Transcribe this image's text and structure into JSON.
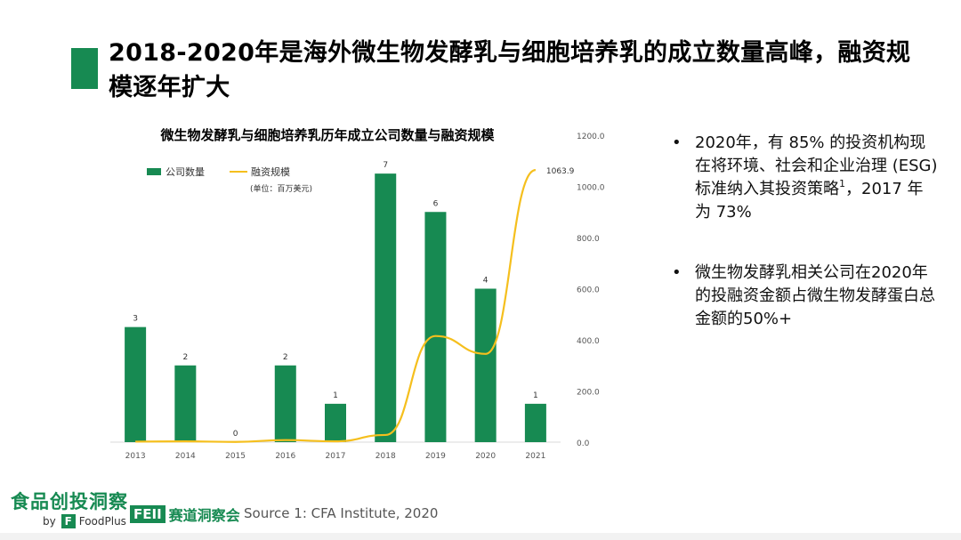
{
  "title": "2018-2020年是海外微生物发酵乳与细胞培养乳的成立数量高峰，融资规模逐年扩大",
  "chart_data": {
    "type": "bar+line",
    "title": "微生物发酵乳与细胞培养乳历年成立公司数量与融资规模",
    "categories": [
      "2013",
      "2014",
      "2015",
      "2016",
      "2017",
      "2018",
      "2019",
      "2020",
      "2021"
    ],
    "series": [
      {
        "name": "公司数量",
        "type": "bar",
        "color": "#178a52",
        "axis": "left",
        "values": [
          3,
          2,
          0,
          2,
          1,
          7,
          6,
          4,
          1
        ]
      },
      {
        "name": "融资规模",
        "type": "line",
        "color": "#f5bf1d",
        "axis": "right",
        "values": [
          2,
          3,
          1,
          8,
          3,
          28,
          415,
          345,
          1063.9
        ]
      }
    ],
    "bar_labels": [
      "3",
      "2",
      "0",
      "2",
      "1",
      "7",
      "6",
      "4",
      "1"
    ],
    "line_end_label": "1063.9",
    "unit_note": "(单位：百万美元)",
    "y_left_range": [
      0,
      8
    ],
    "y_right_range": [
      0,
      1200
    ],
    "y_right_ticks": [
      "0.0",
      "200.0",
      "400.0",
      "600.0",
      "800.0",
      "1000.0",
      "1200.0"
    ],
    "legend_position": "top-left"
  },
  "bullets": [
    {
      "text": "2020年，有 85% 的投资机构现在将环境、社会和企业治理 (ESG) 标准纳入其投资策略",
      "sup": "1",
      "tail": "，2017 年为 73%"
    },
    {
      "text": "微生物发酵乳相关公司在2020年的投融资金额占微生物发酵蛋白总金额的50%+",
      "sup": "",
      "tail": ""
    }
  ],
  "footer": {
    "logo_cn": "食品创投洞察",
    "logo_by": "by",
    "logo_f": "F",
    "logo_foodplus": "FoodPlus",
    "feii_badge": "FEII",
    "feii_text": "赛道洞察会",
    "source": "Source 1:   CFA Institute, 2020"
  },
  "colors": {
    "accent": "#178a52",
    "line": "#f5bf1d"
  }
}
